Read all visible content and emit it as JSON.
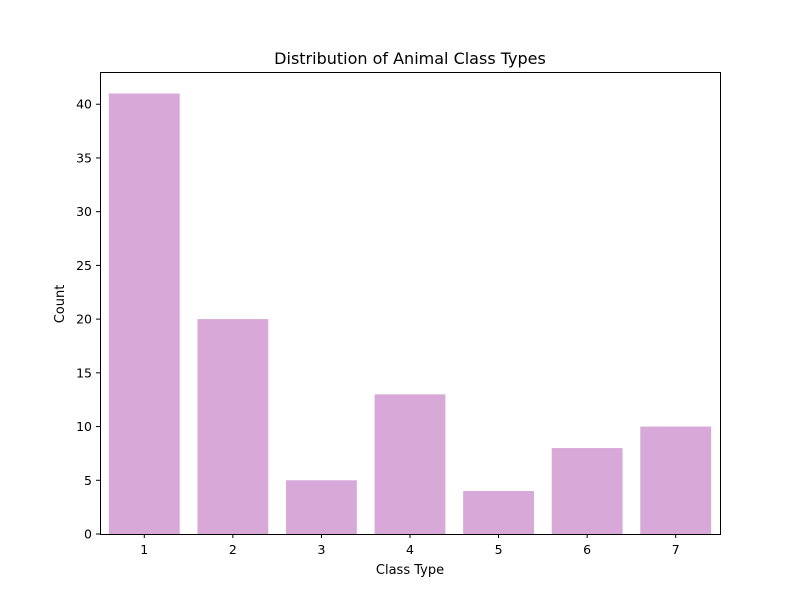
{
  "chart_data": {
    "type": "bar",
    "title": "Distribution of Animal Class Types",
    "xlabel": "Class Type",
    "ylabel": "Count",
    "categories": [
      "1",
      "2",
      "3",
      "4",
      "5",
      "6",
      "7"
    ],
    "values": [
      41,
      20,
      5,
      13,
      4,
      8,
      10
    ],
    "ylim": [
      0,
      43
    ],
    "yticks": [
      0,
      5,
      10,
      15,
      20,
      25,
      30,
      35,
      40
    ],
    "grid": false,
    "legend": "none",
    "bar_color": "#d8a8d8"
  }
}
